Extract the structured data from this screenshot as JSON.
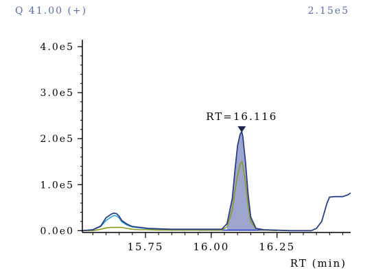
{
  "header": {
    "ion": "Q 41.00 (+)",
    "max_intensity": "2.15e5"
  },
  "colors": {
    "header_text": "#5a6aa8",
    "axis": "#000000",
    "total": "#2a3f86",
    "fill": "#8c94c6",
    "cyan": "#2f9fd8",
    "olive": "#8a9a20",
    "baseline": "#1a2cc4"
  },
  "chart_data": {
    "type": "line",
    "title": "",
    "xlabel": "RT (min)",
    "ylabel": "",
    "xlim": [
      15.51,
      16.53
    ],
    "ylim": [
      -0.04,
      4.15
    ],
    "y_scale_note": "values in units of 1e5",
    "x_ticks": [
      {
        "v": 15.75,
        "label": "15.75"
      },
      {
        "v": 16.0,
        "label": "16.00"
      },
      {
        "v": 16.25,
        "label": "16.25"
      }
    ],
    "y_ticks": [
      {
        "v": 0,
        "label": "0.0e0"
      },
      {
        "v": 1,
        "label": "1.0e5"
      },
      {
        "v": 2,
        "label": "2.0e5"
      },
      {
        "v": 3,
        "label": "3.0e5"
      },
      {
        "v": 4,
        "label": "4.0e5"
      }
    ],
    "peak_annotation": {
      "x": 16.116,
      "y": 2.15,
      "label": "RT=16.116"
    },
    "integration_window": [
      16.06,
      16.17
    ],
    "series": [
      {
        "key": "total",
        "x": [
          15.51,
          15.55,
          15.58,
          15.6,
          15.62,
          15.63,
          15.64,
          15.65,
          15.66,
          15.68,
          15.7,
          15.73,
          15.76,
          15.8,
          15.85,
          15.95,
          16.04,
          16.06,
          16.08,
          16.09,
          16.1,
          16.11,
          16.116,
          16.12,
          16.13,
          16.14,
          16.15,
          16.17,
          16.2,
          16.3,
          16.38,
          16.4,
          16.42,
          16.43,
          16.44,
          16.45,
          16.47,
          16.5,
          16.52,
          16.53
        ],
        "y": [
          0.0,
          0.02,
          0.1,
          0.28,
          0.36,
          0.38,
          0.37,
          0.31,
          0.22,
          0.14,
          0.09,
          0.07,
          0.05,
          0.04,
          0.03,
          0.03,
          0.03,
          0.15,
          0.7,
          1.3,
          1.85,
          2.1,
          2.15,
          2.05,
          1.5,
          0.8,
          0.3,
          0.05,
          0.02,
          0.0,
          0.0,
          0.05,
          0.2,
          0.4,
          0.6,
          0.73,
          0.74,
          0.74,
          0.78,
          0.82
        ]
      },
      {
        "key": "cyan",
        "x": [
          15.51,
          15.55,
          15.58,
          15.6,
          15.62,
          15.63,
          15.64,
          15.65,
          15.66,
          15.68,
          15.7,
          15.73,
          15.76,
          15.8,
          15.85,
          15.95,
          16.04
        ],
        "y": [
          0.0,
          0.02,
          0.09,
          0.22,
          0.3,
          0.33,
          0.32,
          0.27,
          0.19,
          0.12,
          0.08,
          0.06,
          0.04,
          0.03,
          0.02,
          0.02,
          0.02
        ]
      },
      {
        "key": "olive",
        "x": [
          15.51,
          15.55,
          15.58,
          15.6,
          15.62,
          15.64,
          15.66,
          15.68,
          15.7,
          15.73,
          15.76,
          15.8,
          15.9,
          16.0,
          16.04,
          16.06,
          16.08,
          16.09,
          16.1,
          16.11,
          16.116,
          16.12,
          16.13,
          16.14,
          16.15,
          16.17,
          16.2,
          16.25
        ],
        "y": [
          0.0,
          0.0,
          0.03,
          0.06,
          0.07,
          0.07,
          0.07,
          0.05,
          0.03,
          0.02,
          0.02,
          0.01,
          0.01,
          0.01,
          0.01,
          0.08,
          0.45,
          0.85,
          1.2,
          1.45,
          1.5,
          1.42,
          1.05,
          0.55,
          0.2,
          0.04,
          0.01,
          0.0
        ]
      }
    ]
  }
}
